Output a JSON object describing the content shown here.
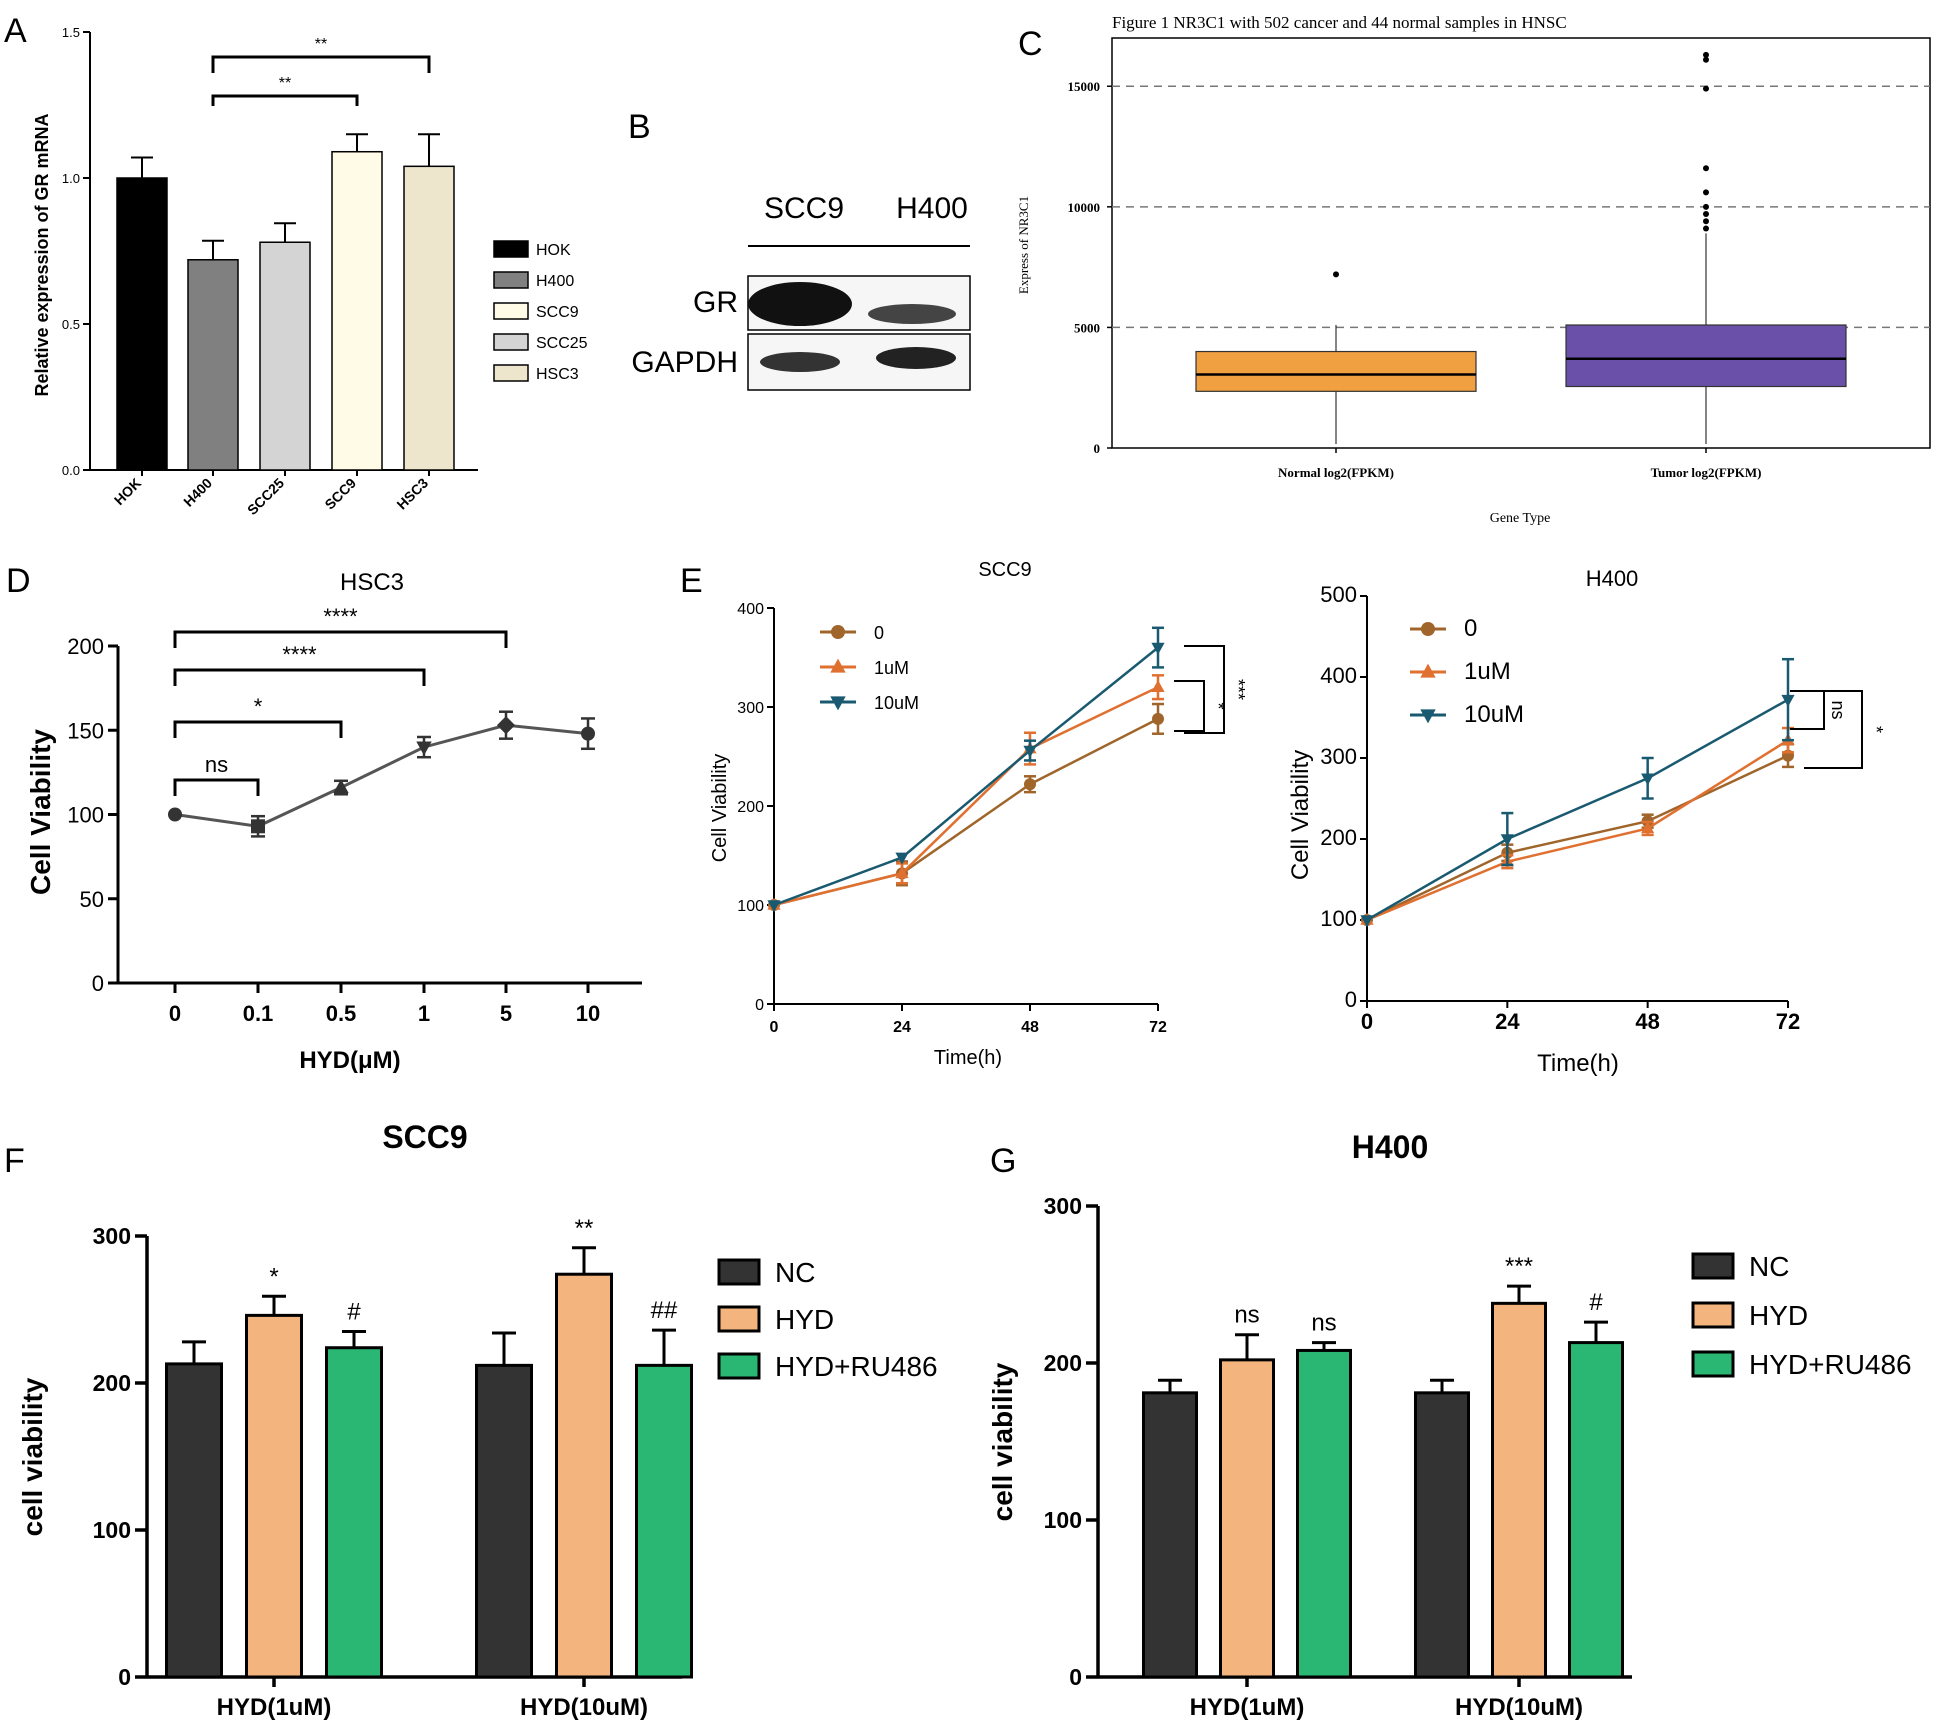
{
  "panel_letters": {
    "A": "A",
    "B": "B",
    "C": "C",
    "D": "D",
    "E": "E",
    "F": "F",
    "G": "G"
  },
  "chart_data": [
    {
      "id": "A",
      "type": "bar",
      "title": "",
      "xlabel": "",
      "ylabel": "Relative expression of  GR mRNA",
      "ylim": [
        0,
        1.5
      ],
      "yticks": [
        "0.0",
        "0.5",
        "1.0",
        "1.5"
      ],
      "categories": [
        "HOK",
        "H400",
        "SCC25",
        "SCC9",
        "HSC3"
      ],
      "values": [
        1.0,
        0.72,
        0.78,
        1.09,
        1.04
      ],
      "errors": [
        0.07,
        0.065,
        0.065,
        0.06,
        0.11
      ],
      "colors": [
        "#000000",
        "#808080",
        "#d4d4d4",
        "#fffbe6",
        "#ede5cc"
      ],
      "legend": [
        "HOK",
        "H400",
        "SCC9",
        "SCC25",
        "HSC3"
      ],
      "legend_colors": [
        "#000000",
        "#808080",
        "#fffbe6",
        "#d4d4d4",
        "#ede5cc"
      ],
      "annotations": [
        {
          "from": "H400",
          "to": "SCC9",
          "label": "**"
        },
        {
          "from": "H400",
          "to": "HSC3",
          "label": "**"
        }
      ]
    },
    {
      "id": "B",
      "type": "western_blot",
      "columns": [
        "SCC9",
        "H400"
      ],
      "rows": [
        "GR",
        "GAPDH"
      ]
    },
    {
      "id": "C",
      "type": "box",
      "title": "Figure 1  NR3C1 with 502 cancer and 44 normal samples in HNSC",
      "xlabel": "Gene Type",
      "ylabel": "Express of NR3C1",
      "ylim": [
        0,
        17000
      ],
      "yticks": [
        "0",
        "5000",
        "10000",
        "15000"
      ],
      "groups": [
        {
          "name": "Normal log2(FPKM)",
          "color": "#f0a040",
          "min": 0,
          "q1": 2350,
          "median": 3050,
          "q3": 4000,
          "max": 5100,
          "outliers": [
            7200
          ]
        },
        {
          "name": "Tumor log2(FPKM)",
          "color": "#6a50a8",
          "min": 0,
          "q1": 2550,
          "median": 3700,
          "q3": 5100,
          "max": 8900,
          "outliers": [
            9100,
            9400,
            9700,
            10000,
            10600,
            11600,
            14900,
            16100,
            16300
          ]
        }
      ]
    },
    {
      "id": "D",
      "type": "line",
      "title": "HSC3",
      "xlabel": "HYD(μM)",
      "ylabel": "Cell Viability",
      "ylim": [
        0,
        200
      ],
      "yticks": [
        "0",
        "50",
        "100",
        "150",
        "200"
      ],
      "categories": [
        "0",
        "0.1",
        "0.5",
        "1",
        "5",
        "10"
      ],
      "values": [
        100,
        93,
        116,
        140,
        153,
        148
      ],
      "errors": [
        1,
        6,
        4,
        6,
        8,
        9
      ],
      "markers": [
        "circle",
        "square",
        "triangle",
        "triangle-down",
        "diamond",
        "circle"
      ],
      "annotations": [
        {
          "from": "0",
          "to": "0.1",
          "label": "ns"
        },
        {
          "from": "0",
          "to": "0.5",
          "label": "*"
        },
        {
          "from": "0",
          "to": "1",
          "label": "****"
        },
        {
          "from": "0",
          "to": "5",
          "label": "****"
        }
      ]
    },
    {
      "id": "E1",
      "type": "line",
      "title": "SCC9",
      "xlabel": "Time(h)",
      "ylabel": "Cell Viability",
      "ylim": [
        0,
        400
      ],
      "yticks": [
        "0",
        "100",
        "200",
        "300",
        "400"
      ],
      "x": [
        "0",
        "24",
        "48",
        "72"
      ],
      "series": [
        {
          "name": "0",
          "color": "#a0652a",
          "marker": "circle",
          "values": [
            100,
            132,
            222,
            288
          ],
          "errors": [
            3,
            12,
            8,
            15
          ]
        },
        {
          "name": "1uM",
          "color": "#e07030",
          "marker": "triangle",
          "values": [
            100,
            132,
            258,
            320
          ],
          "errors": [
            3,
            10,
            16,
            12
          ]
        },
        {
          "name": "10uM",
          "color": "#1a5a70",
          "marker": "triangle-down",
          "values": [
            100,
            148,
            256,
            360
          ],
          "errors": [
            3,
            4,
            10,
            20
          ]
        }
      ],
      "annotations": [
        {
          "label": "*"
        },
        {
          "label": "***"
        }
      ]
    },
    {
      "id": "E2",
      "type": "line",
      "title": "H400",
      "xlabel": "Time(h)",
      "ylabel": "Cell Viability",
      "ylim": [
        0,
        500
      ],
      "yticks": [
        "0",
        "100",
        "200",
        "300",
        "400",
        "500"
      ],
      "x": [
        "0",
        "24",
        "48",
        "72"
      ],
      "series": [
        {
          "name": "0",
          "color": "#a0652a",
          "marker": "circle",
          "values": [
            100,
            183,
            222,
            303
          ],
          "errors": [
            3,
            10,
            8,
            14
          ]
        },
        {
          "name": "1uM",
          "color": "#e07030",
          "marker": "triangle",
          "values": [
            100,
            172,
            213,
            322
          ],
          "errors": [
            3,
            8,
            8,
            15
          ]
        },
        {
          "name": "10uM",
          "color": "#1a5a70",
          "marker": "triangle-down",
          "values": [
            100,
            200,
            275,
            372
          ],
          "errors": [
            3,
            32,
            25,
            50
          ]
        }
      ],
      "annotations": [
        {
          "label": "ns"
        },
        {
          "label": "*"
        }
      ]
    },
    {
      "id": "F",
      "type": "bar",
      "title": "SCC9",
      "xlabel": "",
      "ylabel": "cell viability",
      "ylim": [
        0,
        300
      ],
      "yticks": [
        "0",
        "100",
        "200",
        "300"
      ],
      "categories": [
        "HYD(1uM)",
        "HYD(10uM)"
      ],
      "series": [
        {
          "name": "NC",
          "color": "#333333",
          "values": [
            213,
            212
          ],
          "errors": [
            15,
            22
          ],
          "labels": [
            "",
            ""
          ]
        },
        {
          "name": "HYD",
          "color": "#f3b47e",
          "values": [
            246,
            274
          ],
          "errors": [
            13,
            18
          ],
          "labels": [
            "*",
            "**"
          ]
        },
        {
          "name": "HYD+RU486",
          "color": "#2ab673",
          "values": [
            224,
            212
          ],
          "errors": [
            11,
            24
          ],
          "labels": [
            "#",
            "##"
          ]
        }
      ]
    },
    {
      "id": "G",
      "type": "bar",
      "title": "H400",
      "xlabel": "",
      "ylabel": "cell viability",
      "ylim": [
        0,
        300
      ],
      "yticks": [
        "0",
        "100",
        "200",
        "300"
      ],
      "categories": [
        "HYD(1uM)",
        "HYD(10uM)"
      ],
      "series": [
        {
          "name": "NC",
          "color": "#333333",
          "values": [
            181,
            181
          ],
          "errors": [
            8,
            8
          ],
          "labels": [
            "",
            ""
          ]
        },
        {
          "name": "HYD",
          "color": "#f3b47e",
          "values": [
            202,
            238
          ],
          "errors": [
            16,
            11
          ],
          "labels": [
            "ns",
            "***"
          ]
        },
        {
          "name": "HYD+RU486",
          "color": "#2ab673",
          "values": [
            208,
            213
          ],
          "errors": [
            5,
            13
          ],
          "labels": [
            "ns",
            "#"
          ]
        }
      ]
    }
  ]
}
